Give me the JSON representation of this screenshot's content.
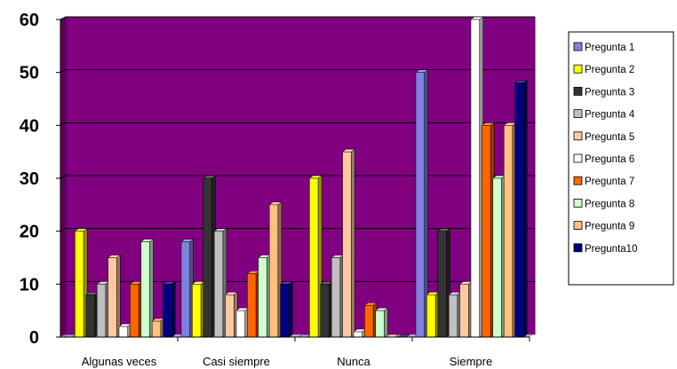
{
  "chart_data": {
    "type": "bar",
    "style": "3d-clustered-column",
    "categories": [
      "Algunas veces",
      "Casi siempre",
      "Nunca",
      "Siempre"
    ],
    "ylim": [
      0,
      60
    ],
    "yticks": [
      "0",
      "10",
      "20",
      "30",
      "40",
      "50",
      "60"
    ],
    "grid": "horizontal",
    "legend_position": "right",
    "plot_background": "#800080",
    "series": [
      {
        "name": "Pregunta 1",
        "color": "#8080E0",
        "values": [
          0,
          18,
          0,
          50
        ]
      },
      {
        "name": "Pregunta 2",
        "color": "#FFFF00",
        "values": [
          20,
          10,
          30,
          8
        ]
      },
      {
        "name": "Pregunta 3",
        "color": "#333333",
        "values": [
          8,
          30,
          10,
          20
        ]
      },
      {
        "name": "Pregunta 4",
        "color": "#C0C0C0",
        "values": [
          10,
          20,
          15,
          8
        ]
      },
      {
        "name": "Pregunta 5",
        "color": "#FFC8A0",
        "values": [
          15,
          8,
          35,
          10
        ]
      },
      {
        "name": "Pregunta 6",
        "color": "#FFFFFF",
        "values": [
          2,
          5,
          1,
          60
        ]
      },
      {
        "name": "Pregunta 7",
        "color": "#FF6600",
        "values": [
          10,
          12,
          6,
          40
        ]
      },
      {
        "name": "Pregunta 8",
        "color": "#CCFFCC",
        "values": [
          18,
          15,
          5,
          30
        ]
      },
      {
        "name": "Pregunta 9",
        "color": "#FFC080",
        "values": [
          3,
          25,
          0,
          40
        ]
      },
      {
        "name": "Pregunta10",
        "color": "#000080",
        "values": [
          10,
          10,
          0,
          48
        ]
      }
    ]
  }
}
